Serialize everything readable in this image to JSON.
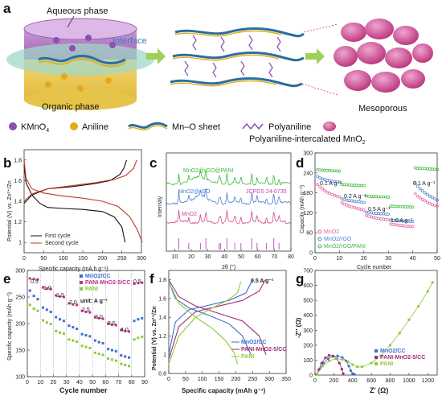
{
  "panel_a": {
    "letter": "a",
    "aqueous": "Aqueous phase",
    "interface": "Interface",
    "organic": "Organic phase",
    "mesoporous": "Mesoporous",
    "legend": [
      "KMnO",
      "4",
      "Aniline",
      "Mn–O sheet",
      "Polyaniline",
      "Polyaniline-intercalated MnO",
      "2"
    ]
  },
  "panel_b": {
    "letter": "b",
    "ylabel": "Potential (V) vs. Zn²⁺/Zn",
    "xlabel": "Specific capacity (mA h g⁻¹)",
    "legend": [
      "First cycle",
      "Second cycle"
    ]
  },
  "panel_c": {
    "letter": "c",
    "ylabel": "Intensity",
    "xlabel": "2θ (°)",
    "labels": [
      "MnO2@rGO@PANI",
      "MnO2@rGO",
      "MnO2",
      "JCPDS 24-0735"
    ]
  },
  "panel_d": {
    "letter": "d",
    "ylabel": "Capacity (mAh g⁻¹)",
    "xlabel": "Cycle number",
    "rates": [
      "0.1 A g⁻¹",
      "0.2 A g⁻¹",
      "0.5 A g⁻¹",
      "1.0 A g⁻¹",
      "0.1 A g⁻¹"
    ],
    "legend": [
      "MnO2",
      "MnO2/rGO",
      "MnO2/rGO/PANI"
    ]
  },
  "panel_e": {
    "letter": "e",
    "ylabel": "Specific capacity (mAh g⁻¹)",
    "xlabel": "Cycle number",
    "rates": [
      "0.5",
      "1.0",
      "1.5",
      "2.0",
      "2.5",
      "3.0",
      "3.5",
      "4.0",
      "0.5"
    ],
    "unit": "unit: A g⁻¹",
    "legend": [
      "MnO2/CC",
      "PANI-MnO2-5/CC",
      "PANI"
    ]
  },
  "panel_f": {
    "letter": "f",
    "ylabel": "Potential (V) vs. Zn²⁺/Zn",
    "xlabel": "Specific capacity (mAh g⁻¹)",
    "rate": "0.5 A g⁻¹",
    "legend": [
      "MnO2/CC",
      "PANI-MnO2-5/CC",
      "PANI"
    ]
  },
  "panel_g": {
    "letter": "g",
    "ylabel": "-Z'' (Ω)",
    "xlabel": "Z' (Ω)",
    "legend": [
      "MnO2/CC",
      "PANI-MnO2-5/CC",
      "PANI"
    ]
  },
  "chart_data": [
    {
      "type": "line",
      "panel": "b",
      "xlabel": "Specific capacity (mA h g⁻¹)",
      "ylabel": "Potential (V) vs. Zn²⁺/Zn",
      "xlim": [
        0,
        300
      ],
      "ylim": [
        0.9,
        1.9
      ],
      "x_ticks": [
        0,
        50,
        100,
        150,
        200,
        250,
        300
      ],
      "y_ticks": [
        1.0,
        1.2,
        1.4,
        1.6,
        1.8
      ],
      "series": [
        {
          "name": "First cycle",
          "color": "#111111",
          "discharge": {
            "x": [
              0,
              5,
              20,
              40,
              60,
              100,
              150,
              200,
              230,
              250,
              258
            ],
            "y": [
              1.75,
              1.58,
              1.46,
              1.38,
              1.34,
              1.33,
              1.32,
              1.3,
              1.25,
              1.15,
              1.0
            ]
          },
          "charge": {
            "x": [
              0,
              20,
              60,
              120,
              180,
              220,
              245,
              255,
              262
            ],
            "y": [
              1.38,
              1.46,
              1.52,
              1.54,
              1.57,
              1.6,
              1.66,
              1.72,
              1.8
            ]
          }
        },
        {
          "name": "Second cycle",
          "color": "#c0392b",
          "discharge": {
            "x": [
              0,
              5,
              20,
              50,
              100,
              150,
              200,
              240,
              270,
              290,
              302
            ],
            "y": [
              1.8,
              1.62,
              1.52,
              1.48,
              1.45,
              1.43,
              1.4,
              1.35,
              1.25,
              1.12,
              1.0
            ]
          },
          "charge": {
            "x": [
              0,
              20,
              60,
              120,
              180,
              230,
              260,
              280,
              288
            ],
            "y": [
              1.4,
              1.47,
              1.52,
              1.55,
              1.58,
              1.61,
              1.65,
              1.72,
              1.8
            ]
          }
        }
      ]
    },
    {
      "type": "line",
      "panel": "c",
      "xlabel": "2θ (°)",
      "ylabel": "Intensity",
      "xlim": [
        5,
        80
      ],
      "x_ticks": [
        10,
        20,
        30,
        40,
        50,
        60,
        70,
        80
      ],
      "series": [
        {
          "name": "MnO2@rGO@PANI",
          "color": "#3cb93c"
        },
        {
          "name": "MnO2@rGO",
          "color": "#4a7fd1"
        },
        {
          "name": "MnO2",
          "color": "#d64a8c"
        }
      ],
      "reference": {
        "name": "JCPDS 24-0735",
        "color": "#c040c0",
        "peaks": [
          12.5,
          18.5,
          25.5,
          28.8,
          36.8,
          37.6,
          41.5,
          46.2,
          49.9,
          56.4,
          59.6,
          65.3,
          69.7,
          72.8
        ]
      }
    },
    {
      "type": "scatter",
      "panel": "d",
      "xlabel": "Cycle number",
      "ylabel": "Capacity (mAh g⁻¹)",
      "xlim": [
        0,
        50
      ],
      "ylim": [
        0,
        300
      ],
      "x_ticks": [
        0,
        10,
        20,
        30,
        40,
        50
      ],
      "y_ticks": [
        0,
        60,
        120,
        180,
        240,
        300
      ],
      "series": [
        {
          "name": "MnO2",
          "color": "#e55fa0",
          "x": [
            1,
            2,
            3,
            4,
            5,
            6,
            7,
            8,
            9,
            10,
            11,
            12,
            13,
            14,
            15,
            16,
            17,
            18,
            19,
            20,
            21,
            22,
            23,
            24,
            25,
            26,
            27,
            28,
            29,
            30,
            31,
            32,
            33,
            34,
            35,
            36,
            37,
            38,
            39,
            40,
            41,
            42,
            43,
            44,
            45,
            46,
            47,
            48,
            49,
            50
          ],
          "y": [
            205,
            198,
            192,
            186,
            182,
            178,
            175,
            172,
            170,
            168,
            150,
            146,
            143,
            140,
            138,
            136,
            134,
            132,
            130,
            128,
            112,
            110,
            108,
            106,
            104,
            103,
            102,
            101,
            100,
            99,
            86,
            85,
            84,
            83,
            82,
            81,
            80,
            80,
            79,
            79,
            178,
            170,
            165,
            160,
            156,
            152,
            148,
            145,
            142,
            140
          ]
        },
        {
          "name": "MnO2/rGO",
          "color": "#4a7fd1",
          "x": [
            1,
            2,
            3,
            4,
            5,
            6,
            7,
            8,
            9,
            10,
            11,
            12,
            13,
            14,
            15,
            16,
            17,
            18,
            19,
            20,
            21,
            22,
            23,
            24,
            25,
            26,
            27,
            28,
            29,
            30,
            31,
            32,
            33,
            34,
            35,
            36,
            37,
            38,
            39,
            40,
            41,
            42,
            43,
            44,
            45,
            46,
            47,
            48,
            49,
            50
          ],
          "y": [
            230,
            225,
            222,
            220,
            218,
            216,
            215,
            214,
            213,
            212,
            162,
            160,
            158,
            157,
            156,
            155,
            154,
            153,
            152,
            151,
            122,
            121,
            120,
            119,
            118,
            118,
            117,
            117,
            116,
            116,
            98,
            97,
            97,
            96,
            96,
            95,
            95,
            95,
            94,
            94,
            210,
            200,
            192,
            186,
            180,
            175,
            170,
            166,
            162,
            158
          ]
        },
        {
          "name": "MnO2/rGO/PANI",
          "color": "#3cb93c",
          "x": [
            1,
            2,
            3,
            4,
            5,
            6,
            7,
            8,
            9,
            10,
            11,
            12,
            13,
            14,
            15,
            16,
            17,
            18,
            19,
            20,
            21,
            22,
            23,
            24,
            25,
            26,
            27,
            28,
            29,
            30,
            31,
            32,
            33,
            34,
            35,
            36,
            37,
            38,
            39,
            40,
            41,
            42,
            43,
            44,
            45,
            46,
            47,
            48,
            49,
            50
          ],
          "y": [
            250,
            249,
            248,
            248,
            247,
            247,
            246,
            246,
            246,
            245,
            205,
            205,
            204,
            204,
            203,
            203,
            203,
            202,
            202,
            202,
            170,
            170,
            169,
            169,
            169,
            168,
            168,
            168,
            168,
            167,
            140,
            140,
            139,
            139,
            139,
            138,
            138,
            138,
            138,
            137,
            255,
            254,
            254,
            253,
            253,
            252,
            252,
            251,
            251,
            250
          ]
        }
      ]
    },
    {
      "type": "scatter",
      "panel": "e",
      "xlabel": "Cycle number",
      "ylabel": "Specific capacity (mAh g⁻¹)",
      "xlim": [
        0,
        90
      ],
      "ylim": [
        100,
        300
      ],
      "x_ticks": [
        0,
        10,
        20,
        30,
        40,
        50,
        60,
        70,
        80,
        90
      ],
      "y_ticks": [
        100,
        150,
        200,
        250,
        300
      ],
      "rates": [
        "0.5",
        "1.0",
        "1.5",
        "2.0",
        "2.5",
        "3.0",
        "3.5",
        "4.0",
        "0.5"
      ],
      "series": [
        {
          "name": "MnO2/CC",
          "color": "#3a6ed0",
          "x": [
            2,
            5,
            8,
            12,
            15,
            18,
            22,
            25,
            28,
            32,
            35,
            38,
            42,
            45,
            48,
            52,
            55,
            58,
            62,
            65,
            68,
            72,
            75,
            78,
            82,
            85,
            88
          ],
          "y": [
            262,
            252,
            246,
            230,
            226,
            222,
            212,
            208,
            205,
            196,
            193,
            190,
            180,
            178,
            176,
            168,
            165,
            163,
            152,
            150,
            148,
            140,
            138,
            136,
            205,
            208,
            210
          ]
        },
        {
          "name": "PANI-MnO2-5/CC",
          "color": "#c0308a",
          "x": [
            2,
            5,
            8,
            12,
            15,
            18,
            22,
            25,
            28,
            32,
            35,
            38,
            42,
            45,
            48,
            52,
            55,
            58,
            62,
            65,
            68,
            72,
            75,
            78,
            82,
            85,
            88
          ],
          "y": [
            285,
            284,
            283,
            268,
            266,
            265,
            253,
            251,
            250,
            238,
            236,
            235,
            224,
            222,
            221,
            212,
            210,
            209,
            200,
            198,
            197,
            188,
            186,
            185,
            275,
            276,
            277
          ]
        },
        {
          "name": "PANI",
          "color": "#8fc93a",
          "x": [
            2,
            5,
            8,
            12,
            15,
            18,
            22,
            25,
            28,
            32,
            35,
            38,
            42,
            45,
            48,
            52,
            55,
            58,
            62,
            65,
            68,
            72,
            75,
            78,
            82,
            85,
            88
          ],
          "y": [
            235,
            228,
            224,
            206,
            202,
            199,
            186,
            183,
            181,
            170,
            168,
            166,
            158,
            156,
            154,
            145,
            143,
            141,
            134,
            132,
            130,
            124,
            122,
            120,
            170,
            173,
            175
          ]
        }
      ]
    },
    {
      "type": "line",
      "panel": "f",
      "xlabel": "Specific capacity (mAh g⁻¹)",
      "ylabel": "Potential (V) vs. Zn²⁺/Zn",
      "xlim": [
        0,
        350
      ],
      "ylim": [
        0.8,
        1.9
      ],
      "x_ticks": [
        0,
        50,
        100,
        150,
        200,
        250,
        300,
        350
      ],
      "y_ticks": [
        0.8,
        1.0,
        1.2,
        1.4,
        1.6,
        1.8
      ],
      "rate": "0.5 A g⁻¹",
      "series": [
        {
          "name": "MnO2/CC",
          "color": "#3a6ed0",
          "discharge": {
            "x": [
              0,
              20,
              60,
              120,
              180,
              220,
              245
            ],
            "y": [
              1.78,
              1.6,
              1.5,
              1.42,
              1.33,
              1.2,
              1.0
            ]
          },
          "charge": {
            "x": [
              0,
              20,
              60,
              120,
              180,
              230,
              250
            ],
            "y": [
              1.0,
              1.35,
              1.48,
              1.53,
              1.58,
              1.66,
              1.8
            ]
          }
        },
        {
          "name": "PANI-MnO2-5/CC",
          "color": "#a0307a",
          "discharge": {
            "x": [
              0,
              30,
              80,
              150,
              220,
              270,
              290
            ],
            "y": [
              1.8,
              1.62,
              1.52,
              1.44,
              1.36,
              1.2,
              1.0
            ]
          },
          "charge": {
            "x": [
              0,
              30,
              80,
              150,
              220,
              270,
              288
            ],
            "y": [
              0.95,
              1.3,
              1.46,
              1.52,
              1.58,
              1.68,
              1.8
            ]
          }
        },
        {
          "name": "PANI",
          "color": "#8fc93a",
          "discharge": {
            "x": [
              0,
              30,
              80,
              130,
              170,
              195,
              205
            ],
            "y": [
              1.78,
              1.55,
              1.4,
              1.28,
              1.15,
              1.02,
              0.9
            ]
          },
          "charge": {
            "x": [
              0,
              30,
              80,
              130,
              175,
              205,
              215
            ],
            "y": [
              0.9,
              1.2,
              1.4,
              1.5,
              1.58,
              1.66,
              1.78
            ]
          }
        }
      ]
    },
    {
      "type": "scatter",
      "panel": "g",
      "xlabel": "Z' (Ω)",
      "ylabel": "-Z'' (Ω)",
      "xlim": [
        0,
        1300
      ],
      "ylim": [
        0,
        700
      ],
      "x_ticks": [
        0,
        200,
        400,
        600,
        800,
        1000,
        1200
      ],
      "y_ticks": [
        0,
        100,
        200,
        300,
        400,
        500,
        600,
        700
      ],
      "series": [
        {
          "name": "MnO2/CC",
          "color": "#3a6ed0",
          "x": [
            20,
            50,
            90,
            140,
            190,
            240,
            290,
            330,
            360,
            380,
            400,
            420
          ],
          "y": [
            5,
            40,
            80,
            110,
            125,
            128,
            118,
            95,
            60,
            30,
            10,
            5
          ]
        },
        {
          "name": "PANI-MnO2-5/CC",
          "color": "#a0307a",
          "x": [
            20,
            40,
            70,
            110,
            150,
            190,
            230,
            260,
            285,
            300
          ],
          "y": [
            5,
            35,
            80,
            115,
            132,
            128,
            110,
            80,
            40,
            10
          ]
        },
        {
          "name": "PANI",
          "color": "#8fc93a",
          "x": [
            20,
            80,
            150,
            220,
            290,
            350,
            400,
            450,
            500,
            600,
            700,
            800,
            900,
            1000,
            1100,
            1200,
            1250
          ],
          "y": [
            5,
            60,
            95,
            110,
            105,
            90,
            70,
            55,
            55,
            80,
            130,
            200,
            280,
            370,
            460,
            560,
            620
          ]
        }
      ]
    }
  ]
}
